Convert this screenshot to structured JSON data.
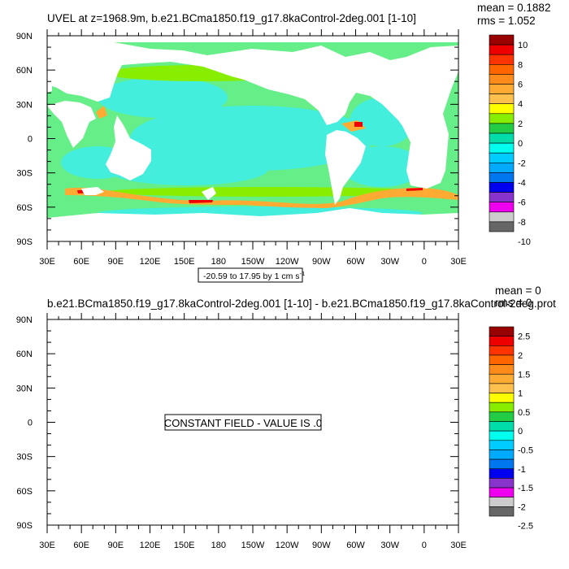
{
  "colors": {
    "land": "#ffffff",
    "frame": "#000000",
    "palette_top": [
      "#990000",
      "#ee0000",
      "#ff3300",
      "#ff6600",
      "#ff8c1a",
      "#ffaa33",
      "#ffc04d",
      "#ffff00",
      "#88ee00",
      "#22cc44",
      "#00ddaa",
      "#00ffee",
      "#00ccff",
      "#00aaff",
      "#0077ee",
      "#0000ee",
      "#8833cc",
      "#ee00ee",
      "#cccccc",
      "#666666"
    ],
    "palette_bottom": [
      "#990000",
      "#ee0000",
      "#ff3300",
      "#ff6600",
      "#ff8c1a",
      "#ffaa33",
      "#ffc04d",
      "#ffff00",
      "#88ee00",
      "#22cc44",
      "#00ddaa",
      "#00ffee",
      "#00ccff",
      "#00aaff",
      "#0077ee",
      "#0000ee",
      "#8833cc",
      "#ee00ee",
      "#cccccc",
      "#666666"
    ]
  },
  "chart_data": [
    {
      "type": "heatmap",
      "title": "UVEL at z=1968.9m, b.e21.BCma1850.f19_g17.8kaControl-2deg.001 [1-10]",
      "mean_label": "mean = 0.1882",
      "rms_label": "rms = 1.052",
      "xlim": [
        30,
        390
      ],
      "ylim": [
        -90,
        90
      ],
      "x_ticks": [
        "30E",
        "60E",
        "90E",
        "120E",
        "150E",
        "180",
        "150W",
        "120W",
        "90W",
        "60W",
        "30W",
        "0",
        "30E"
      ],
      "y_ticks": [
        "90N",
        "60N",
        "30N",
        "0",
        "30S",
        "60S",
        "90S"
      ],
      "contour_info_prefix": "-20.59 to 17.95 by 1 cm s",
      "contour_info_sup": "-1",
      "colorbar_labels": [
        "10",
        "8",
        "6",
        "4",
        "2",
        "0",
        "-2",
        "-4",
        "-6",
        "-8",
        "-10"
      ],
      "field_summary": "mostly small values (about -2 to 2 cm/s) over ocean; strongest positive values along the Antarctic Circumpolar Current near 50S-60S and western boundary currents"
    },
    {
      "type": "heatmap",
      "title": "b.e21.BCma1850.f19_g17.8kaControl-2deg.001 [1-10] - b.e21.BCma1850.f19_g17.8kaControl-2deg.prot",
      "mean_label": "mean = 0",
      "rms_label": "rms = 0",
      "xlim": [
        30,
        390
      ],
      "ylim": [
        -90,
        90
      ],
      "x_ticks": [
        "30E",
        "60E",
        "90E",
        "120E",
        "150E",
        "180",
        "150W",
        "120W",
        "90W",
        "60W",
        "30W",
        "0",
        "30E"
      ],
      "y_ticks": [
        "90N",
        "60N",
        "30N",
        "0",
        "30S",
        "60S",
        "90S"
      ],
      "center_label": "CONSTANT FIELD - VALUE IS .0",
      "colorbar_labels": [
        "2.5",
        "2",
        "1.5",
        "1",
        "0.5",
        "0",
        "-0.5",
        "-1",
        "-1.5",
        "-2",
        "-2.5"
      ]
    }
  ]
}
